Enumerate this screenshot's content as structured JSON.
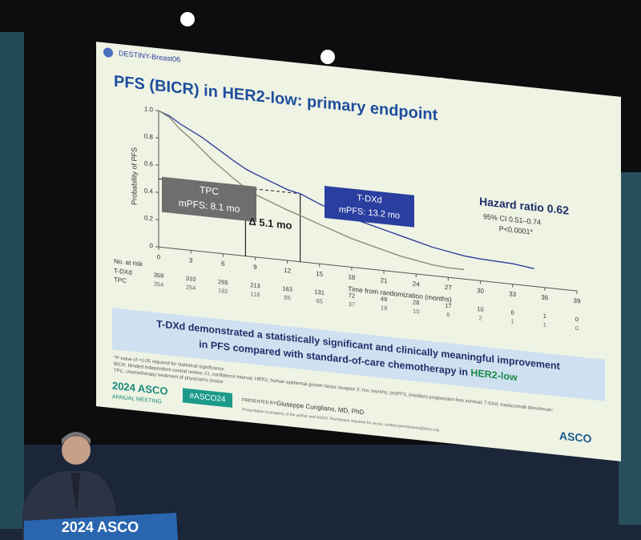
{
  "chart_data": {
    "type": "line",
    "title": "PFS (BICR) in HER2-low: primary endpoint",
    "x_label": "Time from randomization (months)",
    "y_label": "Probability of PFS",
    "x": [
      0,
      1,
      2,
      3,
      4,
      5,
      6,
      7,
      8.1,
      9,
      10,
      11,
      12,
      13.2,
      15,
      16.5,
      18,
      19.5,
      21,
      22.5,
      24,
      25.5,
      27,
      28.5,
      30,
      33,
      35
    ],
    "series": [
      {
        "name": "T-DXd",
        "color": "#2b3a9a",
        "values": [
          1.0,
          0.97,
          0.92,
          0.88,
          0.84,
          0.79,
          0.74,
          0.69,
          0.64,
          0.61,
          0.58,
          0.55,
          0.52,
          0.5,
          0.44,
          0.4,
          0.36,
          0.33,
          0.3,
          0.27,
          0.24,
          0.21,
          0.19,
          0.17,
          0.16,
          0.15,
          0.13
        ]
      },
      {
        "name": "TPC",
        "color": "#8c8a6e",
        "values": [
          1.0,
          0.96,
          0.88,
          0.82,
          0.75,
          0.68,
          0.62,
          0.56,
          0.5,
          0.46,
          0.43,
          0.4,
          0.37,
          0.34,
          0.29,
          0.25,
          0.21,
          0.18,
          0.15,
          0.12,
          0.1,
          0.08,
          0.07,
          0.07,
          null,
          null,
          null
        ]
      }
    ],
    "xlim": [
      0,
      39
    ],
    "xticks": [
      0,
      3,
      6,
      9,
      12,
      15,
      18,
      21,
      24,
      27,
      30,
      33,
      36,
      39
    ],
    "ylim": [
      0,
      1
    ],
    "yticks": [
      0,
      0.2,
      0.4,
      0.6,
      0.8,
      {
        "value": 1,
        "label": "1.0"
      }
    ],
    "medians": {
      "y": 0.5,
      "x": [
        8.1,
        13.2
      ]
    },
    "annotations": {
      "tpc": [
        "TPC",
        "mPFS: 8.1 mo"
      ],
      "tdxd": [
        "T-DXd",
        "mPFS: 13.2 mo"
      ],
      "delta": "Δ 5.1 mo",
      "hazard_ratio": "Hazard ratio 0.62",
      "ci": "95% CI 0.51–0.74",
      "p": "P<0.0001*"
    },
    "at_risk": {
      "title": "No. at risk",
      "rows": [
        [
          359,
          310,
          265,
          213,
          163,
          131,
          72,
          49,
          28,
          17,
          10,
          6,
          1,
          0
        ],
        [
          354,
          254,
          192,
          118,
          85,
          65,
          37,
          19,
          10,
          6,
          2,
          1,
          1,
          0
        ]
      ]
    }
  },
  "slide": {
    "logo": "DESTINY-Breast06",
    "banner": [
      "T-DXd demonstrated a statistically significant and clinically meaningful improvement",
      "in PFS compared with standard-of-care chemotherapy in ",
      "HER2-low"
    ],
    "footnotes": [
      "*P-value of <0.05 required for statistical significance",
      "BICR, blinded independent central review; CI, confidence interval; HER2, human epidermal growth factor receptor 2; mo, months; (m)PFS, (median) progression-free survival; T-DXd, trastuzumab deruxtecan;",
      "TPC, chemotherapy treatment of physician's choice"
    ],
    "meeting": [
      "2024 ASCO",
      "ANNUAL MEETING"
    ],
    "hashtag": "#ASCO24",
    "presented_by": "PRESENTED BY:",
    "presenter": "Giuseppe Curigliano, MD, PhD",
    "notice": "Presentation is property of the author and ASCO. Permission required for reuse; contact permissions@asco.org",
    "asco": "ASCO"
  },
  "podium": "2024 ASCO"
}
